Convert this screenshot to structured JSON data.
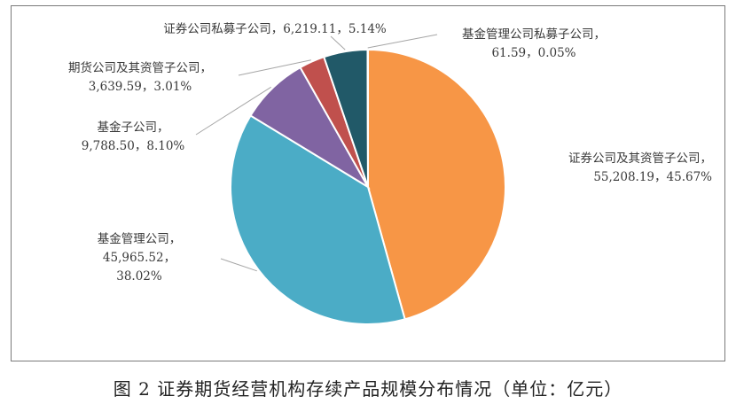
{
  "caption": "图 2  证券期货经营机构存续产品规模分布情况（单位：亿元）",
  "chart_data": {
    "type": "pie",
    "unit": "亿元",
    "slices": [
      {
        "name": "证券公司及其资管子公司",
        "value": 55208.19,
        "percent": 45.67,
        "value_text": "55,208.19",
        "percent_text": "45.67%",
        "color": "#f79646"
      },
      {
        "name": "基金管理公司",
        "value": 45965.52,
        "percent": 38.02,
        "value_text": "45,965.52",
        "percent_text": "38.02%",
        "color": "#4bacc6"
      },
      {
        "name": "基金子公司",
        "value": 9788.5,
        "percent": 8.1,
        "value_text": "9,788.50",
        "percent_text": "8.10%",
        "color": "#8064a2"
      },
      {
        "name": "期货公司及其资管子公司",
        "value": 3639.59,
        "percent": 3.01,
        "value_text": "3,639.59",
        "percent_text": "3.01%",
        "color": "#c0504d"
      },
      {
        "name": "证券公司私募子公司",
        "value": 6219.11,
        "percent": 5.14,
        "value_text": "6,219.11",
        "percent_text": "5.14%",
        "color": "#215968"
      },
      {
        "name": "基金管理公司私募子公司",
        "value": 61.59,
        "percent": 0.05,
        "value_text": "61.59",
        "percent_text": "0.05%",
        "color": "#1f4e79"
      }
    ],
    "labels": {
      "sec_sub_line1": "证券公司及其资管子公司，",
      "sec_sub_line2": "55,208.19，45.67%",
      "fund_line1": "基金管理公司，",
      "fund_line2": "45,965.52，",
      "fund_line3": "38.02%",
      "fundsub_line1": "基金子公司，",
      "fundsub_line2": "9,788.50，8.10%",
      "fut_line1": "期货公司及其资管子公司，",
      "fut_line2": "3,639.59，3.01%",
      "secpriv_line1": "证券公司私募子公司，6,219.11，5.14%",
      "fundpriv_line1": "基金管理公司私募子公司，",
      "fundpriv_line2": "61.59，0.05%"
    }
  }
}
